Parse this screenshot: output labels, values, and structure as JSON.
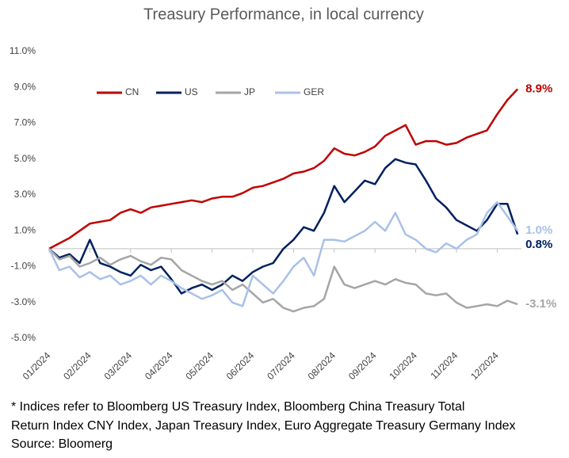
{
  "chart_data": {
    "type": "line",
    "title": "Treasury Performance, in local currency",
    "categories": [
      "01/2024",
      null,
      null,
      null,
      "02/2024",
      null,
      null,
      null,
      "03/2024",
      null,
      null,
      null,
      "04/2024",
      null,
      null,
      null,
      "05/2024",
      null,
      null,
      null,
      "06/2024",
      null,
      null,
      null,
      "07/2024",
      null,
      null,
      null,
      "08/2024",
      null,
      null,
      null,
      "09/2024",
      null,
      null,
      null,
      "10/2024",
      null,
      null,
      null,
      "11/2024",
      null,
      null,
      null,
      "12/2024",
      null,
      null
    ],
    "series": [
      {
        "name": "CN",
        "color": "#c00000",
        "end_label": "8.9%",
        "values": [
          0,
          0.3,
          0.6,
          1.0,
          1.4,
          1.5,
          1.6,
          2.0,
          2.2,
          2.0,
          2.3,
          2.4,
          2.5,
          2.6,
          2.7,
          2.6,
          2.8,
          2.9,
          2.9,
          3.1,
          3.4,
          3.5,
          3.7,
          3.9,
          4.2,
          4.3,
          4.5,
          4.9,
          5.6,
          5.3,
          5.2,
          5.4,
          5.7,
          6.3,
          6.6,
          6.9,
          5.8,
          6.0,
          6.0,
          5.8,
          5.9,
          6.2,
          6.4,
          6.6,
          7.5,
          8.3,
          8.9
        ]
      },
      {
        "name": "US",
        "color": "#002060",
        "end_label": "0.8%",
        "values": [
          0,
          -0.5,
          -0.3,
          -0.8,
          0.5,
          -0.8,
          -1.0,
          -1.3,
          -1.5,
          -0.9,
          -1.2,
          -1.0,
          -1.7,
          -2.5,
          -2.2,
          -2.0,
          -2.3,
          -2.0,
          -1.5,
          -1.8,
          -1.3,
          -1.0,
          -0.8,
          0.0,
          0.5,
          1.2,
          1.0,
          2.0,
          3.5,
          2.6,
          3.2,
          3.8,
          3.6,
          4.5,
          5.0,
          4.8,
          4.7,
          3.8,
          2.8,
          2.3,
          1.6,
          1.3,
          1.0,
          1.6,
          2.5,
          2.5,
          0.8
        ]
      },
      {
        "name": "JP",
        "color": "#a5a5a5",
        "end_label": "-3.1%",
        "values": [
          0,
          -0.6,
          -0.4,
          -1.0,
          -0.8,
          -0.5,
          -0.9,
          -0.6,
          -0.4,
          -0.7,
          -0.9,
          -0.5,
          -0.6,
          -1.2,
          -1.5,
          -1.8,
          -2.0,
          -1.8,
          -2.3,
          -2.0,
          -2.5,
          -3.0,
          -2.8,
          -3.3,
          -3.5,
          -3.3,
          -3.2,
          -2.8,
          -1.0,
          -2.0,
          -2.2,
          -2.0,
          -1.8,
          -2.0,
          -1.7,
          -1.9,
          -2.0,
          -2.5,
          -2.6,
          -2.5,
          -3.0,
          -3.3,
          -3.2,
          -3.1,
          -3.2,
          -2.9,
          -3.1
        ]
      },
      {
        "name": "GER",
        "color": "#a9c1e8",
        "end_label": "1.0%",
        "values": [
          0,
          -1.2,
          -1.0,
          -1.6,
          -1.3,
          -1.7,
          -1.5,
          -2.0,
          -1.8,
          -1.5,
          -2.0,
          -1.5,
          -1.8,
          -2.2,
          -2.5,
          -2.8,
          -2.6,
          -2.3,
          -3.0,
          -3.2,
          -1.5,
          -2.0,
          -2.5,
          -1.8,
          -1.0,
          -0.5,
          -1.5,
          0.5,
          0.5,
          0.4,
          0.7,
          1.0,
          1.5,
          1.0,
          2.0,
          0.8,
          0.5,
          0.0,
          -0.2,
          0.3,
          0.0,
          0.5,
          0.8,
          2.0,
          2.6,
          1.8,
          1.0
        ]
      }
    ],
    "ylim": [
      -5,
      11
    ],
    "yticks": [
      {
        "value": -5,
        "label": "-5.0%"
      },
      {
        "value": -3,
        "label": "-3.0%"
      },
      {
        "value": -1,
        "label": "-1.0%"
      },
      {
        "value": 1,
        "label": "1.0%"
      },
      {
        "value": 3,
        "label": "3.0%"
      },
      {
        "value": 5,
        "label": "5.0%"
      },
      {
        "value": 7,
        "label": "7.0%"
      },
      {
        "value": 9,
        "label": "9.0%"
      },
      {
        "value": 11,
        "label": "11.0%"
      }
    ],
    "grid": false,
    "legend": "top",
    "notes": [
      "* Indices refer to Bloomberg US Treasury Index, Bloomberg China Treasury Total",
      "Return Index CNY Index, Japan Treasury Index,  Euro Aggregate Treasury Germany Index",
      "Source: Bloomerg"
    ]
  }
}
